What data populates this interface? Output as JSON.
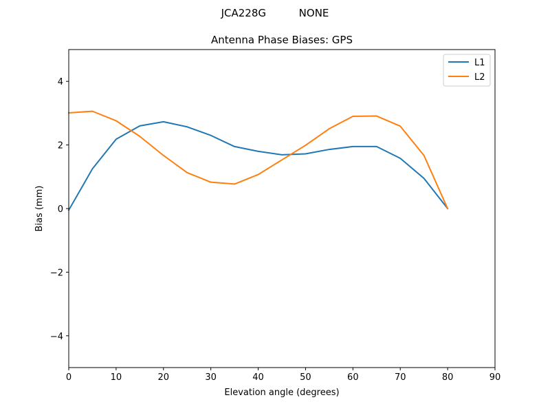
{
  "figure": {
    "suptitle": "JCA228G          NONE"
  },
  "chart_data": {
    "type": "line",
    "title": "Antenna Phase Biases: GPS",
    "xlabel": "Elevation angle (degrees)",
    "ylabel": "Bias (mm)",
    "xlim": [
      0,
      90
    ],
    "ylim": [
      -5,
      5
    ],
    "xticks": [
      0,
      10,
      20,
      30,
      40,
      50,
      60,
      70,
      80,
      90
    ],
    "yticks": [
      -4,
      -2,
      0,
      2,
      4
    ],
    "ytick_labels": [
      "−4",
      "−2",
      "0",
      "2",
      "4"
    ],
    "grid": false,
    "legend_position": "top-right",
    "x": [
      0,
      5,
      10,
      15,
      20,
      25,
      30,
      35,
      40,
      45,
      50,
      55,
      60,
      65,
      70,
      75,
      80
    ],
    "series": [
      {
        "name": "L1",
        "color": "#1f77b4",
        "values": [
          -0.05,
          1.25,
          2.18,
          2.6,
          2.73,
          2.57,
          2.3,
          1.95,
          1.8,
          1.69,
          1.72,
          1.86,
          1.95,
          1.95,
          1.58,
          0.95,
          0.0
        ]
      },
      {
        "name": "L2",
        "color": "#ff7f0e",
        "values": [
          3.01,
          3.06,
          2.76,
          2.27,
          1.67,
          1.13,
          0.83,
          0.77,
          1.07,
          1.53,
          1.99,
          2.51,
          2.9,
          2.91,
          2.59,
          1.67,
          0.0
        ]
      }
    ]
  }
}
